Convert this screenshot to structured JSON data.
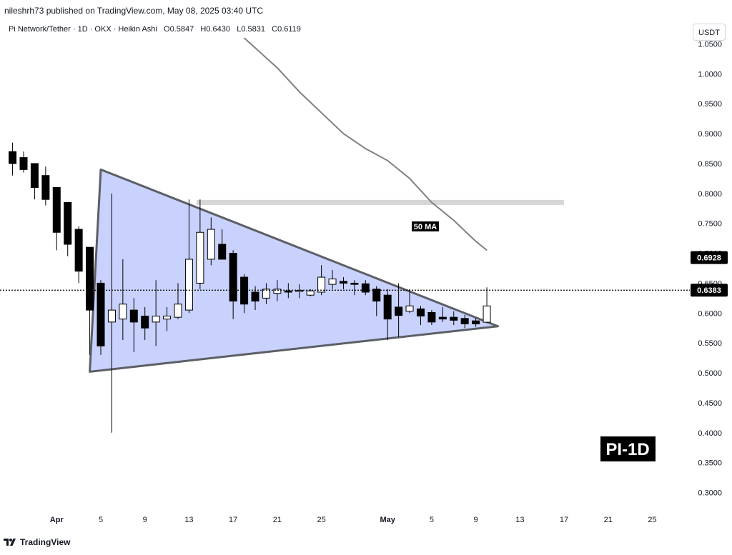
{
  "header": {
    "publisher": "nileshrh73 published on TradingView.com, May 08, 2025 03:40 UTC"
  },
  "legend": {
    "symbol": "Pi Network/Tether · 1D · OKX · Heikin Ashi",
    "o_label": "O",
    "o_value": "0.5847",
    "h_label": "H",
    "h_value": "0.6430",
    "l_label": "L",
    "l_value": "0.5831",
    "c_label": "C",
    "c_value": "0.6119"
  },
  "currency_button": "USDT",
  "footer": {
    "brand": "TradingView"
  },
  "colors": {
    "bull": "#ffffff",
    "bear": "#000000",
    "triangle_fill": "#b5c3fb",
    "triangle_edge": "#5d5f66",
    "ma": "#808080",
    "resistance": "#d6d6d6"
  },
  "chart_data": {
    "type": "candlestick",
    "style": "Heikin Ashi",
    "ylim": [
      0.27,
      1.08
    ],
    "y_ticks": [
      "1.0500",
      "1.0000",
      "0.9500",
      "0.9000",
      "0.8500",
      "0.8000",
      "0.7500",
      "0.7000",
      "0.6500",
      "0.6000",
      "0.5500",
      "0.5000",
      "0.4500",
      "0.4000",
      "0.3500",
      "0.3000"
    ],
    "x_ticks": [
      {
        "label": "Apr",
        "day": 1,
        "bold": true
      },
      {
        "label": "5",
        "day": 5
      },
      {
        "label": "9",
        "day": 9
      },
      {
        "label": "13",
        "day": 13
      },
      {
        "label": "17",
        "day": 17
      },
      {
        "label": "21",
        "day": 21
      },
      {
        "label": "25",
        "day": 25
      },
      {
        "label": "May",
        "day": 31,
        "bold": true
      },
      {
        "label": "5",
        "day": 35
      },
      {
        "label": "9",
        "day": 39
      },
      {
        "label": "13",
        "day": 43
      },
      {
        "label": "17",
        "day": 47
      },
      {
        "label": "21",
        "day": 51
      },
      {
        "label": "25",
        "day": 55
      }
    ],
    "x_note": "day index: 1 = Apr 1, 31 = May 1",
    "candles": [
      {
        "day": -3,
        "o": 0.87,
        "h": 0.885,
        "l": 0.83,
        "c": 0.85
      },
      {
        "day": -2,
        "o": 0.86,
        "h": 0.87,
        "l": 0.835,
        "c": 0.84
      },
      {
        "day": -1,
        "o": 0.85,
        "h": 0.85,
        "l": 0.79,
        "c": 0.81
      },
      {
        "day": 0,
        "o": 0.83,
        "h": 0.845,
        "l": 0.78,
        "c": 0.79
      },
      {
        "day": 1,
        "o": 0.81,
        "h": 0.81,
        "l": 0.705,
        "c": 0.735
      },
      {
        "day": 2,
        "o": 0.785,
        "h": 0.785,
        "l": 0.695,
        "c": 0.715
      },
      {
        "day": 3,
        "o": 0.74,
        "h": 0.745,
        "l": 0.65,
        "c": 0.67
      },
      {
        "day": 4,
        "o": 0.71,
        "h": 0.71,
        "l": 0.53,
        "c": 0.605
      },
      {
        "day": 5,
        "o": 0.65,
        "h": 0.655,
        "l": 0.53,
        "c": 0.545
      },
      {
        "day": 6,
        "o": 0.585,
        "h": 0.8,
        "l": 0.4,
        "c": 0.605
      },
      {
        "day": 7,
        "o": 0.59,
        "h": 0.69,
        "l": 0.555,
        "c": 0.615
      },
      {
        "day": 8,
        "o": 0.605,
        "h": 0.625,
        "l": 0.535,
        "c": 0.585
      },
      {
        "day": 9,
        "o": 0.595,
        "h": 0.61,
        "l": 0.555,
        "c": 0.575
      },
      {
        "day": 10,
        "o": 0.585,
        "h": 0.655,
        "l": 0.545,
        "c": 0.595
      },
      {
        "day": 11,
        "o": 0.59,
        "h": 0.61,
        "l": 0.57,
        "c": 0.595
      },
      {
        "day": 12,
        "o": 0.593,
        "h": 0.65,
        "l": 0.59,
        "c": 0.615
      },
      {
        "day": 13,
        "o": 0.605,
        "h": 0.79,
        "l": 0.6,
        "c": 0.69
      },
      {
        "day": 14,
        "o": 0.65,
        "h": 0.79,
        "l": 0.64,
        "c": 0.735
      },
      {
        "day": 15,
        "o": 0.69,
        "h": 0.76,
        "l": 0.68,
        "c": 0.74
      },
      {
        "day": 16,
        "o": 0.715,
        "h": 0.74,
        "l": 0.69,
        "c": 0.69
      },
      {
        "day": 17,
        "o": 0.7,
        "h": 0.705,
        "l": 0.59,
        "c": 0.62
      },
      {
        "day": 18,
        "o": 0.66,
        "h": 0.665,
        "l": 0.6,
        "c": 0.615
      },
      {
        "day": 19,
        "o": 0.635,
        "h": 0.645,
        "l": 0.605,
        "c": 0.62
      },
      {
        "day": 20,
        "o": 0.625,
        "h": 0.65,
        "l": 0.615,
        "c": 0.64
      },
      {
        "day": 21,
        "o": 0.633,
        "h": 0.655,
        "l": 0.62,
        "c": 0.64
      },
      {
        "day": 22,
        "o": 0.637,
        "h": 0.65,
        "l": 0.625,
        "c": 0.635
      },
      {
        "day": 23,
        "o": 0.636,
        "h": 0.648,
        "l": 0.625,
        "c": 0.638
      },
      {
        "day": 24,
        "o": 0.63,
        "h": 0.64,
        "l": 0.628,
        "c": 0.637
      },
      {
        "day": 25,
        "o": 0.635,
        "h": 0.68,
        "l": 0.63,
        "c": 0.66
      },
      {
        "day": 26,
        "o": 0.648,
        "h": 0.672,
        "l": 0.64,
        "c": 0.657
      },
      {
        "day": 27,
        "o": 0.653,
        "h": 0.66,
        "l": 0.64,
        "c": 0.65
      },
      {
        "day": 28,
        "o": 0.65,
        "h": 0.655,
        "l": 0.63,
        "c": 0.648
      },
      {
        "day": 29,
        "o": 0.649,
        "h": 0.655,
        "l": 0.63,
        "c": 0.635
      },
      {
        "day": 30,
        "o": 0.64,
        "h": 0.645,
        "l": 0.595,
        "c": 0.62
      },
      {
        "day": 31,
        "o": 0.63,
        "h": 0.64,
        "l": 0.555,
        "c": 0.59
      },
      {
        "day": 32,
        "o": 0.61,
        "h": 0.65,
        "l": 0.56,
        "c": 0.596
      },
      {
        "day": 33,
        "o": 0.603,
        "h": 0.64,
        "l": 0.6,
        "c": 0.612
      },
      {
        "day": 34,
        "o": 0.607,
        "h": 0.612,
        "l": 0.58,
        "c": 0.595
      },
      {
        "day": 35,
        "o": 0.601,
        "h": 0.605,
        "l": 0.58,
        "c": 0.585
      },
      {
        "day": 36,
        "o": 0.593,
        "h": 0.61,
        "l": 0.585,
        "c": 0.59
      },
      {
        "day": 37,
        "o": 0.593,
        "h": 0.603,
        "l": 0.58,
        "c": 0.588
      },
      {
        "day": 38,
        "o": 0.591,
        "h": 0.597,
        "l": 0.575,
        "c": 0.582
      },
      {
        "day": 39,
        "o": 0.587,
        "h": 0.592,
        "l": 0.577,
        "c": 0.582
      },
      {
        "day": 40,
        "o": 0.5847,
        "h": 0.643,
        "l": 0.5831,
        "c": 0.6119
      }
    ],
    "ma50": {
      "label": "50 MA",
      "points": [
        [
          18,
          1.06
        ],
        [
          21,
          1.01
        ],
        [
          23,
          0.97
        ],
        [
          25,
          0.935
        ],
        [
          27,
          0.9
        ],
        [
          29,
          0.875
        ],
        [
          31,
          0.855
        ],
        [
          33,
          0.825
        ],
        [
          35,
          0.785
        ],
        [
          37,
          0.755
        ],
        [
          39,
          0.72
        ],
        [
          40,
          0.705
        ]
      ]
    },
    "triangle": [
      [
        4,
        0.502
      ],
      [
        5,
        0.84
      ],
      [
        41,
        0.578
      ]
    ],
    "resistance_level": {
      "y": 0.785,
      "from_day": 14,
      "to_day": 47
    },
    "last_price_line": 0.6383,
    "price_labels": [
      {
        "text": "0.6928",
        "value": 0.6928
      },
      {
        "text": "0.6383",
        "value": 0.6383
      }
    ],
    "watermark": "PI-1D"
  }
}
